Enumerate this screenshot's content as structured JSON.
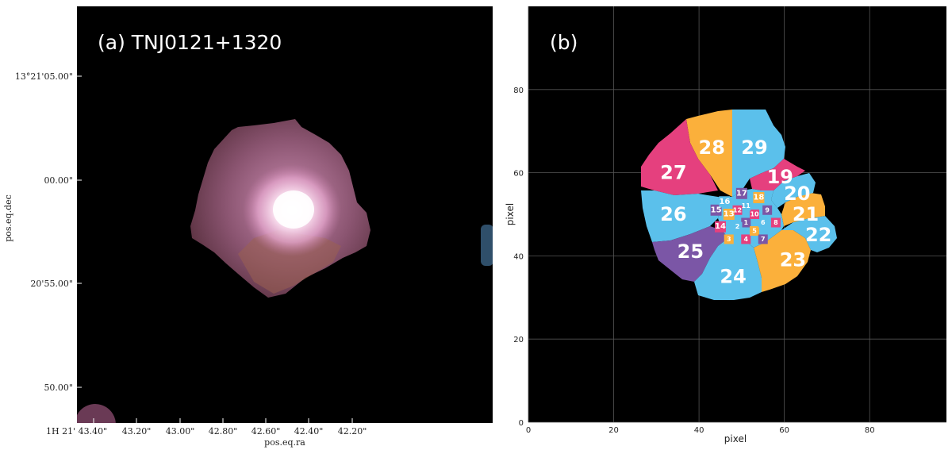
{
  "chart_data": [
    {
      "type": "image",
      "panel_label": "(a) TNJ0121+1320",
      "xlabel": "pos.eq.ra",
      "ylabel": "pos.eq.dec",
      "xticks": [
        "1H 21' 43.40\"",
        "43.20\"",
        "43.00\"",
        "42.80\"",
        "42.60\"",
        "42.40\"",
        "42.20\""
      ],
      "yticks": [
        "13°21'05.00\"",
        "00.00\"",
        "20'55.00\"",
        "50.00\""
      ],
      "colors": {
        "background": "#000000",
        "nebula_core": "#fff6fb",
        "nebula_mid": "#e7a9d2",
        "nebula_outer": "#7a4a5e"
      }
    },
    {
      "type": "heatmap",
      "panel_label": "(b)",
      "xlabel": "pixel",
      "ylabel": "pixel",
      "xlim": [
        0,
        98
      ],
      "ylim": [
        0,
        100
      ],
      "xticks": [
        0,
        20,
        40,
        60,
        80
      ],
      "yticks": [
        0,
        20,
        40,
        60,
        80
      ],
      "grid": true,
      "colors": {
        "blue": "#5bc0eb",
        "orange": "#fbb03b",
        "pink": "#e5407e",
        "purple": "#7b56a6"
      },
      "bins": [
        {
          "id": "1",
          "x": 51,
          "y": 48,
          "color": "purple"
        },
        {
          "id": "2",
          "x": 49,
          "y": 47,
          "color": "blue"
        },
        {
          "id": "3",
          "x": 47,
          "y": 44,
          "color": "orange"
        },
        {
          "id": "4",
          "x": 51,
          "y": 44,
          "color": "pink"
        },
        {
          "id": "5",
          "x": 53,
          "y": 46,
          "color": "orange"
        },
        {
          "id": "6",
          "x": 55,
          "y": 48,
          "color": "blue"
        },
        {
          "id": "7",
          "x": 55,
          "y": 44,
          "color": "purple"
        },
        {
          "id": "8",
          "x": 58,
          "y": 48,
          "color": "pink"
        },
        {
          "id": "9",
          "x": 56,
          "y": 51,
          "color": "purple"
        },
        {
          "id": "10",
          "x": 53,
          "y": 50,
          "color": "pink"
        },
        {
          "id": "11",
          "x": 51,
          "y": 52,
          "color": "blue"
        },
        {
          "id": "12",
          "x": 49,
          "y": 51,
          "color": "pink"
        },
        {
          "id": "13",
          "x": 47,
          "y": 50,
          "color": "orange"
        },
        {
          "id": "14",
          "x": 45,
          "y": 47,
          "color": "pink"
        },
        {
          "id": "15",
          "x": 44,
          "y": 51,
          "color": "purple"
        },
        {
          "id": "16",
          "x": 46,
          "y": 53,
          "color": "blue"
        },
        {
          "id": "17",
          "x": 50,
          "y": 55,
          "color": "purple"
        },
        {
          "id": "18",
          "x": 54,
          "y": 54,
          "color": "orange"
        },
        {
          "id": "19",
          "x": 59,
          "y": 59,
          "color": "pink"
        },
        {
          "id": "20",
          "x": 63,
          "y": 55,
          "color": "blue"
        },
        {
          "id": "21",
          "x": 65,
          "y": 50,
          "color": "orange"
        },
        {
          "id": "22",
          "x": 68,
          "y": 45,
          "color": "blue"
        },
        {
          "id": "23",
          "x": 62,
          "y": 39,
          "color": "orange"
        },
        {
          "id": "24",
          "x": 48,
          "y": 35,
          "color": "blue"
        },
        {
          "id": "25",
          "x": 38,
          "y": 41,
          "color": "purple"
        },
        {
          "id": "26",
          "x": 34,
          "y": 50,
          "color": "blue"
        },
        {
          "id": "27",
          "x": 34,
          "y": 60,
          "color": "pink"
        },
        {
          "id": "28",
          "x": 43,
          "y": 66,
          "color": "orange"
        },
        {
          "id": "29",
          "x": 53,
          "y": 66,
          "color": "blue"
        }
      ]
    }
  ]
}
